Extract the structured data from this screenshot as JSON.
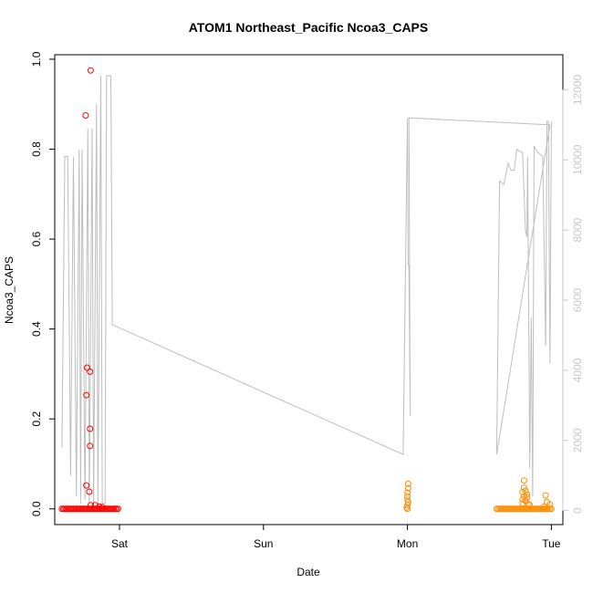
{
  "chart_data": {
    "type": "scatter",
    "title": "ATOM1 Northeast_Pacific Ncoa3_CAPS",
    "xlabel": "Date",
    "ylabel": "Ncoa3_CAPS",
    "x_axis": {
      "range_days": [
        -0.45,
        3.08
      ],
      "ticks": [
        {
          "day": 0,
          "label": "Sat"
        },
        {
          "day": 1,
          "label": "Sun"
        },
        {
          "day": 2,
          "label": "Mon"
        },
        {
          "day": 3,
          "label": "Tue"
        }
      ]
    },
    "y_axis_left": {
      "range": [
        -0.035,
        1.01
      ],
      "ticks": [
        {
          "value": 0.0,
          "label": "0.0"
        },
        {
          "value": 0.2,
          "label": "0.2"
        },
        {
          "value": 0.4,
          "label": "0.4"
        },
        {
          "value": 0.6,
          "label": "0.6"
        },
        {
          "value": 0.8,
          "label": "0.8"
        },
        {
          "value": 1.0,
          "label": "1.0"
        }
      ]
    },
    "y_axis_right": {
      "color": "#c8c8c8",
      "range": [
        -400,
        13000
      ],
      "ticks": [
        {
          "value": 0,
          "label": "0"
        },
        {
          "value": 2000,
          "label": "2000"
        },
        {
          "value": 4000,
          "label": "4000"
        },
        {
          "value": 6000,
          "label": "6000"
        },
        {
          "value": 8000,
          "label": "8000"
        },
        {
          "value": 10000,
          "label": "10000"
        },
        {
          "value": 12000,
          "label": "12000"
        }
      ]
    },
    "series": [
      {
        "color": "#ff0000",
        "marker": "open-circle",
        "points": [
          [
            -0.4,
            0
          ],
          [
            -0.39,
            0
          ],
          [
            -0.38,
            0
          ],
          [
            -0.37,
            0
          ],
          [
            -0.36,
            0
          ],
          [
            -0.35,
            0
          ],
          [
            -0.34,
            0
          ],
          [
            -0.33,
            0
          ],
          [
            -0.32,
            0
          ],
          [
            -0.31,
            0
          ],
          [
            -0.3,
            0
          ],
          [
            -0.29,
            0
          ],
          [
            -0.28,
            0
          ],
          [
            -0.27,
            0
          ],
          [
            -0.26,
            0
          ],
          [
            -0.25,
            0
          ],
          [
            -0.24,
            0
          ],
          [
            -0.23,
            0
          ],
          [
            -0.22,
            0
          ],
          [
            -0.21,
            0
          ],
          [
            -0.2,
            0
          ],
          [
            -0.19,
            0
          ],
          [
            -0.18,
            0
          ],
          [
            -0.17,
            0
          ],
          [
            -0.16,
            0
          ],
          [
            -0.15,
            0
          ],
          [
            -0.14,
            0
          ],
          [
            -0.13,
            0
          ],
          [
            -0.12,
            0
          ],
          [
            -0.11,
            0
          ],
          [
            -0.1,
            0
          ],
          [
            -0.09,
            0
          ],
          [
            -0.08,
            0
          ],
          [
            -0.07,
            0
          ],
          [
            -0.06,
            0
          ],
          [
            -0.05,
            0
          ],
          [
            -0.04,
            0
          ],
          [
            -0.03,
            0
          ],
          [
            -0.02,
            0
          ],
          [
            -0.01,
            0
          ],
          [
            -0.235,
            0.875
          ],
          [
            -0.23,
            0.253
          ],
          [
            -0.225,
            0.314
          ],
          [
            -0.23,
            0.052
          ],
          [
            -0.2,
            0.975
          ],
          [
            -0.205,
            0.305
          ],
          [
            -0.205,
            0.178
          ],
          [
            -0.205,
            0.14
          ],
          [
            -0.21,
            0.038
          ],
          [
            -0.2,
            0.008
          ],
          [
            -0.17,
            0.008
          ],
          [
            -0.14,
            0.005
          ],
          [
            -0.12,
            0.004
          ]
        ]
      },
      {
        "color": "#ff8c00",
        "marker": "open-circle",
        "points": [
          [
            2.005,
            0.056
          ],
          [
            2.005,
            0.046
          ],
          [
            2.0,
            0.036
          ],
          [
            2.0,
            0.028
          ],
          [
            2.0,
            0.02
          ],
          [
            2.005,
            0.014
          ],
          [
            2.0,
            0.008
          ],
          [
            1.995,
            0.003
          ],
          [
            2.0,
            0.0
          ],
          [
            2.62,
            0
          ],
          [
            2.63,
            0
          ],
          [
            2.64,
            0
          ],
          [
            2.65,
            0
          ],
          [
            2.66,
            0
          ],
          [
            2.67,
            0
          ],
          [
            2.68,
            0
          ],
          [
            2.69,
            0
          ],
          [
            2.7,
            0
          ],
          [
            2.71,
            0
          ],
          [
            2.72,
            0
          ],
          [
            2.73,
            0
          ],
          [
            2.74,
            0
          ],
          [
            2.75,
            0
          ],
          [
            2.76,
            0
          ],
          [
            2.77,
            0
          ],
          [
            2.78,
            0
          ],
          [
            2.79,
            0
          ],
          [
            2.8,
            0
          ],
          [
            2.81,
            0
          ],
          [
            2.82,
            0
          ],
          [
            2.83,
            0
          ],
          [
            2.84,
            0
          ],
          [
            2.85,
            0
          ],
          [
            2.86,
            0
          ],
          [
            2.87,
            0
          ],
          [
            2.88,
            0
          ],
          [
            2.89,
            0
          ],
          [
            2.9,
            0
          ],
          [
            2.91,
            0
          ],
          [
            2.92,
            0
          ],
          [
            2.93,
            0
          ],
          [
            2.94,
            0
          ],
          [
            2.95,
            0
          ],
          [
            2.96,
            0
          ],
          [
            2.97,
            0
          ],
          [
            2.98,
            0
          ],
          [
            2.99,
            0
          ],
          [
            3.0,
            0
          ],
          [
            2.81,
            0.063
          ],
          [
            2.81,
            0.047
          ],
          [
            2.8,
            0.037
          ],
          [
            2.82,
            0.04
          ],
          [
            2.83,
            0.032
          ],
          [
            2.83,
            0.025
          ],
          [
            2.81,
            0.027
          ],
          [
            2.82,
            0.018
          ],
          [
            2.8,
            0.021
          ],
          [
            2.8,
            0.012
          ],
          [
            2.84,
            0.011
          ],
          [
            2.85,
            0.008
          ],
          [
            2.96,
            0.03
          ],
          [
            2.97,
            0.015
          ],
          [
            2.99,
            0.01
          ],
          [
            2.95,
            0.005
          ]
        ]
      }
    ],
    "secondary_line": {
      "color": "#bebebe",
      "axis": "right",
      "points": [
        [
          -0.4,
          1800
        ],
        [
          -0.38,
          10100
        ],
        [
          -0.36,
          10100
        ],
        [
          -0.34,
          1000
        ],
        [
          -0.32,
          10100
        ],
        [
          -0.3,
          400
        ],
        [
          -0.28,
          10300
        ],
        [
          -0.27,
          200
        ],
        [
          -0.26,
          10300
        ],
        [
          -0.24,
          300
        ],
        [
          -0.22,
          10900
        ],
        [
          -0.21,
          200
        ],
        [
          -0.19,
          10900
        ],
        [
          -0.18,
          100
        ],
        [
          -0.16,
          11600
        ],
        [
          -0.15,
          100
        ],
        [
          -0.13,
          12400
        ],
        [
          -0.12,
          200
        ],
        [
          -0.1,
          200
        ],
        [
          -0.09,
          12400
        ],
        [
          -0.06,
          12400
        ],
        [
          -0.05,
          5300
        ],
        [
          1.97,
          1600
        ],
        [
          2.0,
          11200
        ],
        [
          2.005,
          7000
        ],
        [
          2.01,
          7000
        ],
        [
          2.02,
          2700
        ],
        [
          2.01,
          11200
        ],
        [
          2.99,
          11000
        ],
        [
          2.62,
          1600
        ],
        [
          2.64,
          9400
        ],
        [
          2.67,
          9300
        ],
        [
          2.7,
          9900
        ],
        [
          2.72,
          9700
        ],
        [
          2.74,
          9700
        ],
        [
          2.76,
          10300
        ],
        [
          2.8,
          10200
        ],
        [
          2.82,
          8000
        ],
        [
          2.83,
          7800
        ],
        [
          2.835,
          10100
        ],
        [
          2.85,
          1200
        ],
        [
          2.86,
          5500
        ],
        [
          2.87,
          400
        ],
        [
          2.88,
          10400
        ],
        [
          2.89,
          10300
        ],
        [
          2.91,
          10200
        ],
        [
          2.94,
          10100
        ],
        [
          2.96,
          4700
        ],
        [
          2.97,
          11100
        ],
        [
          2.98,
          11100
        ],
        [
          2.99,
          4200
        ],
        [
          3.0,
          11100
        ]
      ]
    }
  }
}
